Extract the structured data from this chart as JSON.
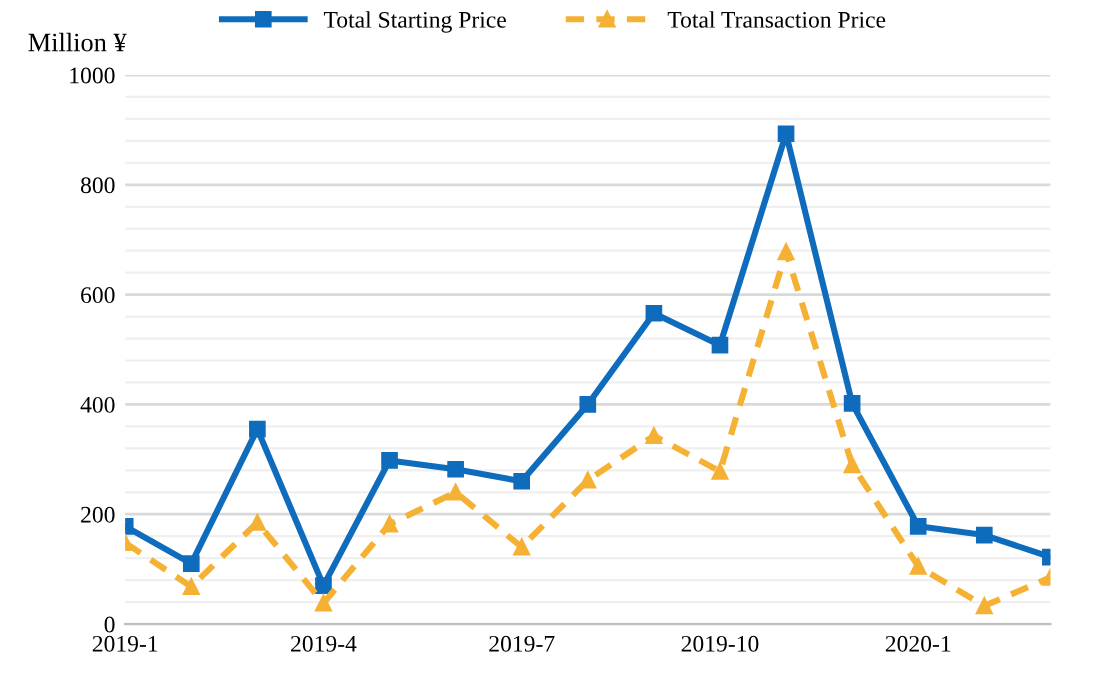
{
  "chart_data": {
    "type": "line",
    "ylabel": "Million ¥",
    "categories": [
      "2019-1",
      null,
      null,
      "2019-4",
      null,
      null,
      "2019-7",
      null,
      null,
      "2019-10",
      null,
      null,
      "2020-1",
      null,
      null
    ],
    "series": [
      {
        "name": "Total Starting Price",
        "color": "#0f6cbd",
        "marker": "square",
        "line_style": "solid",
        "values": [
          178,
          110,
          355,
          70,
          298,
          282,
          260,
          400,
          566,
          508,
          893,
          402,
          178,
          162,
          122
        ]
      },
      {
        "name": "Total Transaction Price",
        "color": "#f5b134",
        "marker": "triangle",
        "line_style": "dashed",
        "values": [
          148,
          68,
          185,
          38,
          182,
          240,
          140,
          262,
          343,
          278,
          678,
          290,
          105,
          33,
          85
        ]
      }
    ],
    "ylim": [
      0,
      1000
    ],
    "yticks": [
      0,
      {
        "value": 40,
        "label": null
      },
      {
        "value": 80,
        "label": null
      },
      {
        "value": 120,
        "label": null
      },
      {
        "value": 160,
        "label": null
      },
      200,
      {
        "value": 240,
        "label": null
      },
      {
        "value": 280,
        "label": null
      },
      {
        "value": 320,
        "label": null
      },
      {
        "value": 360,
        "label": null
      },
      400,
      {
        "value": 440,
        "label": null
      },
      {
        "value": 480,
        "label": null
      },
      {
        "value": 520,
        "label": null
      },
      {
        "value": 560,
        "label": null
      },
      600,
      {
        "value": 640,
        "label": null
      },
      {
        "value": 680,
        "label": null
      },
      {
        "value": 720,
        "label": null
      },
      {
        "value": 760,
        "label": null
      },
      800,
      {
        "value": 840,
        "label": null
      },
      {
        "value": 880,
        "label": null
      },
      {
        "value": 920,
        "label": null
      },
      {
        "value": 960,
        "label": null
      },
      1000
    ],
    "grid": "y",
    "legend": "top"
  }
}
